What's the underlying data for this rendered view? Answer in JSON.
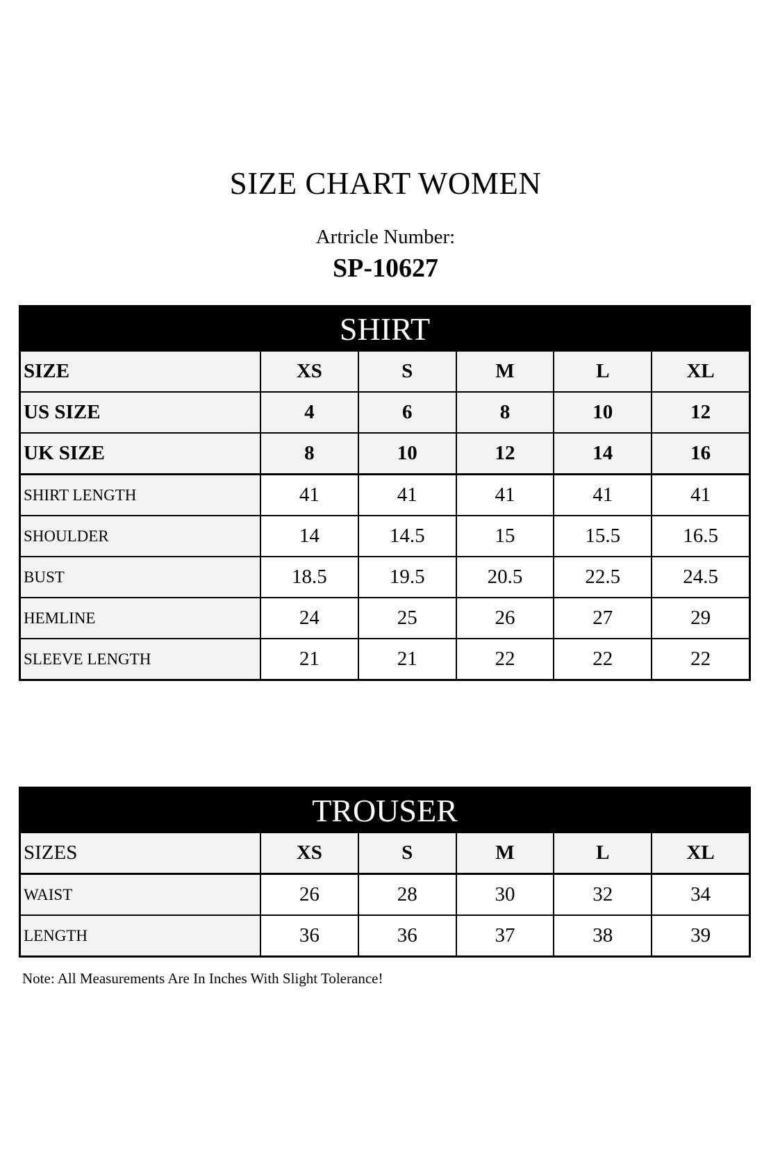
{
  "title": "SIZE CHART WOMEN",
  "article_label": "Artricle Number:",
  "article_number": "SP-10627",
  "shirt": {
    "heading": "SHIRT",
    "header_rows": [
      {
        "label": "SIZE",
        "values": [
          "XS",
          "S",
          "M",
          "L",
          "XL"
        ]
      },
      {
        "label": "US SIZE",
        "values": [
          "4",
          "6",
          "8",
          "10",
          "12"
        ]
      },
      {
        "label": "UK SIZE",
        "values": [
          "8",
          "10",
          "12",
          "14",
          "16"
        ]
      }
    ],
    "rows": [
      {
        "label": "SHIRT LENGTH",
        "values": [
          "41",
          "41",
          "41",
          "41",
          "41"
        ]
      },
      {
        "label": "SHOULDER",
        "values": [
          "14",
          "14.5",
          "15",
          "15.5",
          "16.5"
        ]
      },
      {
        "label": "BUST",
        "values": [
          "18.5",
          "19.5",
          "20.5",
          "22.5",
          "24.5"
        ]
      },
      {
        "label": "HEMLINE",
        "values": [
          "24",
          "25",
          "26",
          "27",
          "29"
        ]
      },
      {
        "label": "SLEEVE LENGTH",
        "values": [
          "21",
          "21",
          "22",
          "22",
          "22"
        ]
      }
    ]
  },
  "trouser": {
    "heading": "TROUSER",
    "header_rows": [
      {
        "label": "SIZES",
        "values": [
          "XS",
          "S",
          "M",
          "L",
          "XL"
        ]
      }
    ],
    "rows": [
      {
        "label": "WAIST",
        "values": [
          "26",
          "28",
          "30",
          "32",
          "34"
        ]
      },
      {
        "label": "LENGTH",
        "values": [
          "36",
          "36",
          "37",
          "38",
          "39"
        ]
      }
    ]
  },
  "note": "Note: All Measurements Are In Inches With Slight Tolerance!"
}
